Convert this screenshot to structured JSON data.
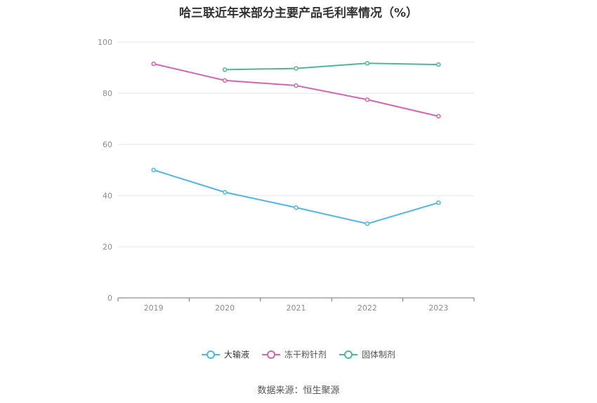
{
  "chart_data": {
    "type": "line",
    "title": "哈三联近年来部分主要产品毛利率情况（%）",
    "categories": [
      "2019",
      "2020",
      "2021",
      "2022",
      "2023"
    ],
    "ylim": [
      0,
      100
    ],
    "yticks": [
      0,
      20,
      40,
      60,
      80,
      100
    ],
    "grid": true,
    "legend_position": "bottom",
    "series": [
      {
        "name": "大输液",
        "color": "#4db6ec",
        "values": [
          50.0,
          41.3,
          35.3,
          29.0,
          37.2
        ]
      },
      {
        "name": "冻干粉针剂",
        "color": "#d664ae",
        "values": [
          91.5,
          85.0,
          83.0,
          77.5,
          71.0
        ]
      },
      {
        "name": "固体制剂",
        "color": "#4bb89a",
        "values": [
          null,
          89.2,
          89.7,
          91.7,
          91.2
        ]
      }
    ]
  },
  "source_text": "数据来源：恒生聚源"
}
